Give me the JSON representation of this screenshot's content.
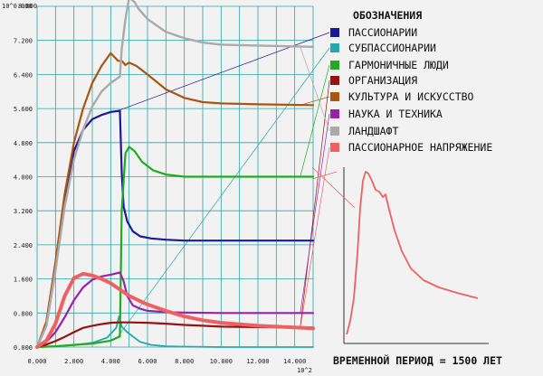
{
  "chart_data": {
    "type": "line",
    "y_scale_label": "10^0.000",
    "x_scale_label": "10^2",
    "xlim": [
      0,
      15
    ],
    "ylim": [
      0,
      8
    ],
    "x_ticks": [
      "0.000",
      "2.000",
      "4.000",
      "6.000",
      "8.000",
      "10.000",
      "12.000",
      "14.000"
    ],
    "y_ticks": [
      "0.000",
      "0.800",
      "1.600",
      "2.400",
      "3.200",
      "4.000",
      "4.800",
      "5.600",
      "6.400",
      "7.200",
      "8.000"
    ],
    "grid": true,
    "legend_title": "ОБОЗНАЧЕНИЯ",
    "legend_placement": "right",
    "series": [
      {
        "name": "ПАССИОНАРИИ",
        "color": "#1a1a99",
        "x": [
          0,
          0.5,
          1.0,
          1.5,
          2.0,
          2.5,
          3.0,
          3.5,
          4.0,
          4.5,
          4.6,
          4.7,
          4.9,
          5.2,
          5.6,
          6.2,
          7.0,
          8.0,
          10.0,
          12.0,
          15.0
        ],
        "y": [
          0,
          0.5,
          1.8,
          3.4,
          4.6,
          5.1,
          5.35,
          5.45,
          5.52,
          5.55,
          4.1,
          3.3,
          2.95,
          2.72,
          2.6,
          2.55,
          2.52,
          2.5,
          2.5,
          2.5,
          2.5
        ]
      },
      {
        "name": "СУБПАССИОНАРИИ",
        "color": "#22aaaa",
        "x": [
          0,
          1.0,
          2.0,
          3.0,
          3.8,
          4.3,
          4.45,
          4.6,
          4.9,
          5.2,
          5.6,
          6.2,
          7.0,
          8.0,
          10.0,
          12.0,
          15.0
        ],
        "y": [
          0,
          0.02,
          0.05,
          0.1,
          0.22,
          0.45,
          0.72,
          0.48,
          0.35,
          0.25,
          0.12,
          0.05,
          0.02,
          0.01,
          0.0,
          0.0,
          0.0
        ]
      },
      {
        "name": "ГАРМОНИЧНЫЕ ЛЮДИ",
        "color": "#22aa22",
        "x": [
          0,
          1.0,
          2.0,
          3.0,
          4.0,
          4.5,
          4.6,
          4.8,
          5.0,
          5.3,
          5.7,
          6.3,
          7.0,
          8.0,
          9.0,
          10.0,
          12.0,
          15.0
        ],
        "y": [
          0,
          0.02,
          0.05,
          0.08,
          0.15,
          0.25,
          3.2,
          4.55,
          4.7,
          4.6,
          4.35,
          4.15,
          4.05,
          4.0,
          4.0,
          4.0,
          4.0,
          4.0
        ]
      },
      {
        "name": "ОРГАНИЗАЦИЯ",
        "color": "#991111",
        "x": [
          0,
          0.5,
          1.0,
          1.5,
          2.0,
          2.5,
          3.0,
          3.5,
          4.0,
          4.5,
          5.0,
          6.0,
          7.0,
          8.0,
          9.0,
          10.0,
          12.0,
          15.0
        ],
        "y": [
          0,
          0.06,
          0.14,
          0.24,
          0.35,
          0.45,
          0.5,
          0.54,
          0.57,
          0.58,
          0.58,
          0.57,
          0.55,
          0.52,
          0.5,
          0.48,
          0.47,
          0.46
        ]
      },
      {
        "name": "КУЛЬТУРА И ИСКУССТВО",
        "color": "#aa5511",
        "x": [
          0,
          0.5,
          1.0,
          1.5,
          2.0,
          2.5,
          3.0,
          3.5,
          4.0,
          4.4,
          4.6,
          4.8,
          5.0,
          5.4,
          6.0,
          7.0,
          8.0,
          9.0,
          10.0,
          12.0,
          15.0
        ],
        "y": [
          0,
          0.6,
          2.0,
          3.6,
          4.8,
          5.6,
          6.2,
          6.6,
          6.9,
          6.72,
          6.72,
          6.62,
          6.68,
          6.6,
          6.4,
          6.05,
          5.85,
          5.75,
          5.72,
          5.7,
          5.68
        ]
      },
      {
        "name": "НАУКА И ТЕХНИКА",
        "color": "#9922aa",
        "x": [
          0,
          0.5,
          1.0,
          1.5,
          2.0,
          2.5,
          3.0,
          3.5,
          4.0,
          4.5,
          4.7,
          4.9,
          5.2,
          5.6,
          6.0,
          7.0,
          8.0,
          10.0,
          12.0,
          15.0
        ],
        "y": [
          0,
          0.12,
          0.35,
          0.7,
          1.1,
          1.4,
          1.58,
          1.66,
          1.7,
          1.75,
          1.55,
          1.2,
          0.98,
          0.9,
          0.85,
          0.82,
          0.81,
          0.8,
          0.8,
          0.8
        ]
      },
      {
        "name": "ЛАНДШАФТ",
        "color": "#aaaaaa",
        "x": [
          0,
          0.5,
          1.0,
          1.5,
          2.0,
          2.5,
          3.0,
          3.5,
          4.0,
          4.5,
          4.6,
          4.8,
          5.0,
          5.3,
          5.5,
          6.0,
          7.0,
          8.0,
          9.0,
          10.0,
          12.0,
          15.0
        ],
        "y": [
          0,
          0.5,
          1.8,
          3.3,
          4.4,
          5.1,
          5.65,
          6.0,
          6.2,
          6.35,
          7.0,
          7.7,
          8.2,
          8.1,
          7.95,
          7.7,
          7.4,
          7.25,
          7.15,
          7.1,
          7.08,
          7.05
        ]
      },
      {
        "name": "ПАССИОНАРНОЕ НАПРЯЖЕНИЕ",
        "color": "#f06060",
        "x": [
          0,
          0.5,
          1.0,
          1.5,
          2.0,
          2.5,
          3.0,
          3.5,
          4.0,
          4.5,
          5.0,
          6.0,
          7.0,
          8.0,
          9.0,
          10.0,
          12.0,
          15.0
        ],
        "y": [
          0,
          0.15,
          0.55,
          1.2,
          1.62,
          1.72,
          1.68,
          1.6,
          1.5,
          1.35,
          1.2,
          1.0,
          0.85,
          0.72,
          0.63,
          0.57,
          0.5,
          0.44
        ]
      }
    ]
  },
  "caption": "ВРЕМЕННОЙ ПЕРИОД = 1500 ЛЕТ"
}
